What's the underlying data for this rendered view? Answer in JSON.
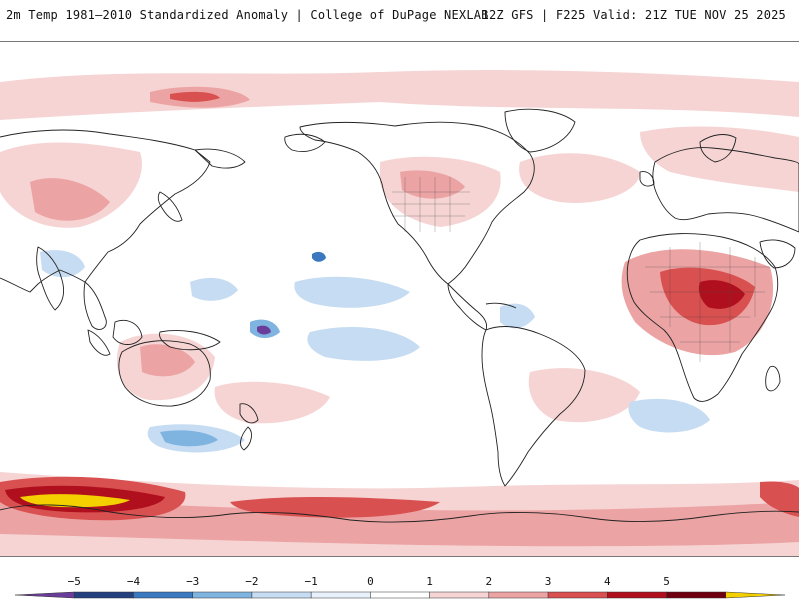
{
  "header": {
    "left_title": "2m Temp 1981–2010 Standardized Anomaly | College of DuPage NEXLAB",
    "right_title": "12Z GFS | F225 Valid: 21Z TUE NOV 25 2025"
  },
  "map": {
    "projection": "global equirectangular, centered on Pacific (~180°)",
    "field": "2m temperature standardized anomaly",
    "colors": {
      "neg5": "#6a3d9a",
      "neg4": "#25407f",
      "neg3": "#3a78c0",
      "neg2": "#7fb3e0",
      "neg1": "#c6dcf2",
      "zero": "#ffffff",
      "pos1": "#f6d4d4",
      "pos2": "#eca3a3",
      "pos3": "#d8504f",
      "pos4": "#b0101e",
      "pos5": "#6e0010",
      "pos6": "#f4d000",
      "land_outline": "#222222"
    }
  },
  "colorbar": {
    "tick_labels": [
      "−5",
      "−4",
      "−3",
      "−2",
      "−1",
      "0",
      "1",
      "2",
      "3",
      "4",
      "5"
    ],
    "bins": [
      "#6a3d9a",
      "#25407f",
      "#3a78c0",
      "#7fb3e0",
      "#c6dcf2",
      "#e8f1fb",
      "#ffffff",
      "#f6d4d4",
      "#eca3a3",
      "#d8504f",
      "#b0101e",
      "#6e0010",
      "#f4d000"
    ]
  }
}
